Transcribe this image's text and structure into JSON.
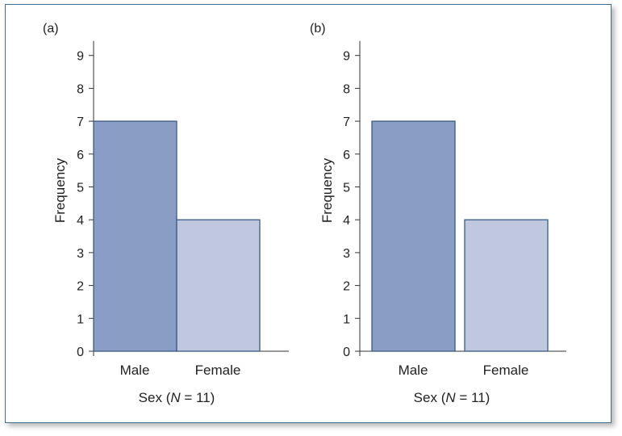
{
  "chart_data": [
    {
      "panel_label": "(a)",
      "type": "bar",
      "categories": [
        "Male",
        "Female"
      ],
      "values": [
        7,
        4
      ],
      "colors": [
        "#8a9dc5",
        "#c0c8df"
      ],
      "bar_style": "adjacent",
      "xlabel": {
        "prefix": "Sex (",
        "symbol": "N",
        "suffix": " = 11)"
      },
      "ylabel": "Frequency",
      "ylim": [
        0,
        9
      ],
      "yticks": [
        0,
        1,
        2,
        3,
        4,
        5,
        6,
        7,
        8,
        9
      ],
      "grid": false
    },
    {
      "panel_label": "(b)",
      "type": "bar",
      "categories": [
        "Male",
        "Female"
      ],
      "values": [
        7,
        4
      ],
      "colors": [
        "#8a9dc5",
        "#c0c8df"
      ],
      "bar_style": "separated",
      "xlabel": {
        "prefix": "Sex (",
        "symbol": "N",
        "suffix": " = 11)"
      },
      "ylabel": "Frequency",
      "ylim": [
        0,
        9
      ],
      "yticks": [
        0,
        1,
        2,
        3,
        4,
        5,
        6,
        7,
        8,
        9
      ],
      "grid": false
    }
  ],
  "colors": {
    "axis": "#333333",
    "bar_outline": "#3a5a86",
    "frame": "#3f6f95"
  }
}
